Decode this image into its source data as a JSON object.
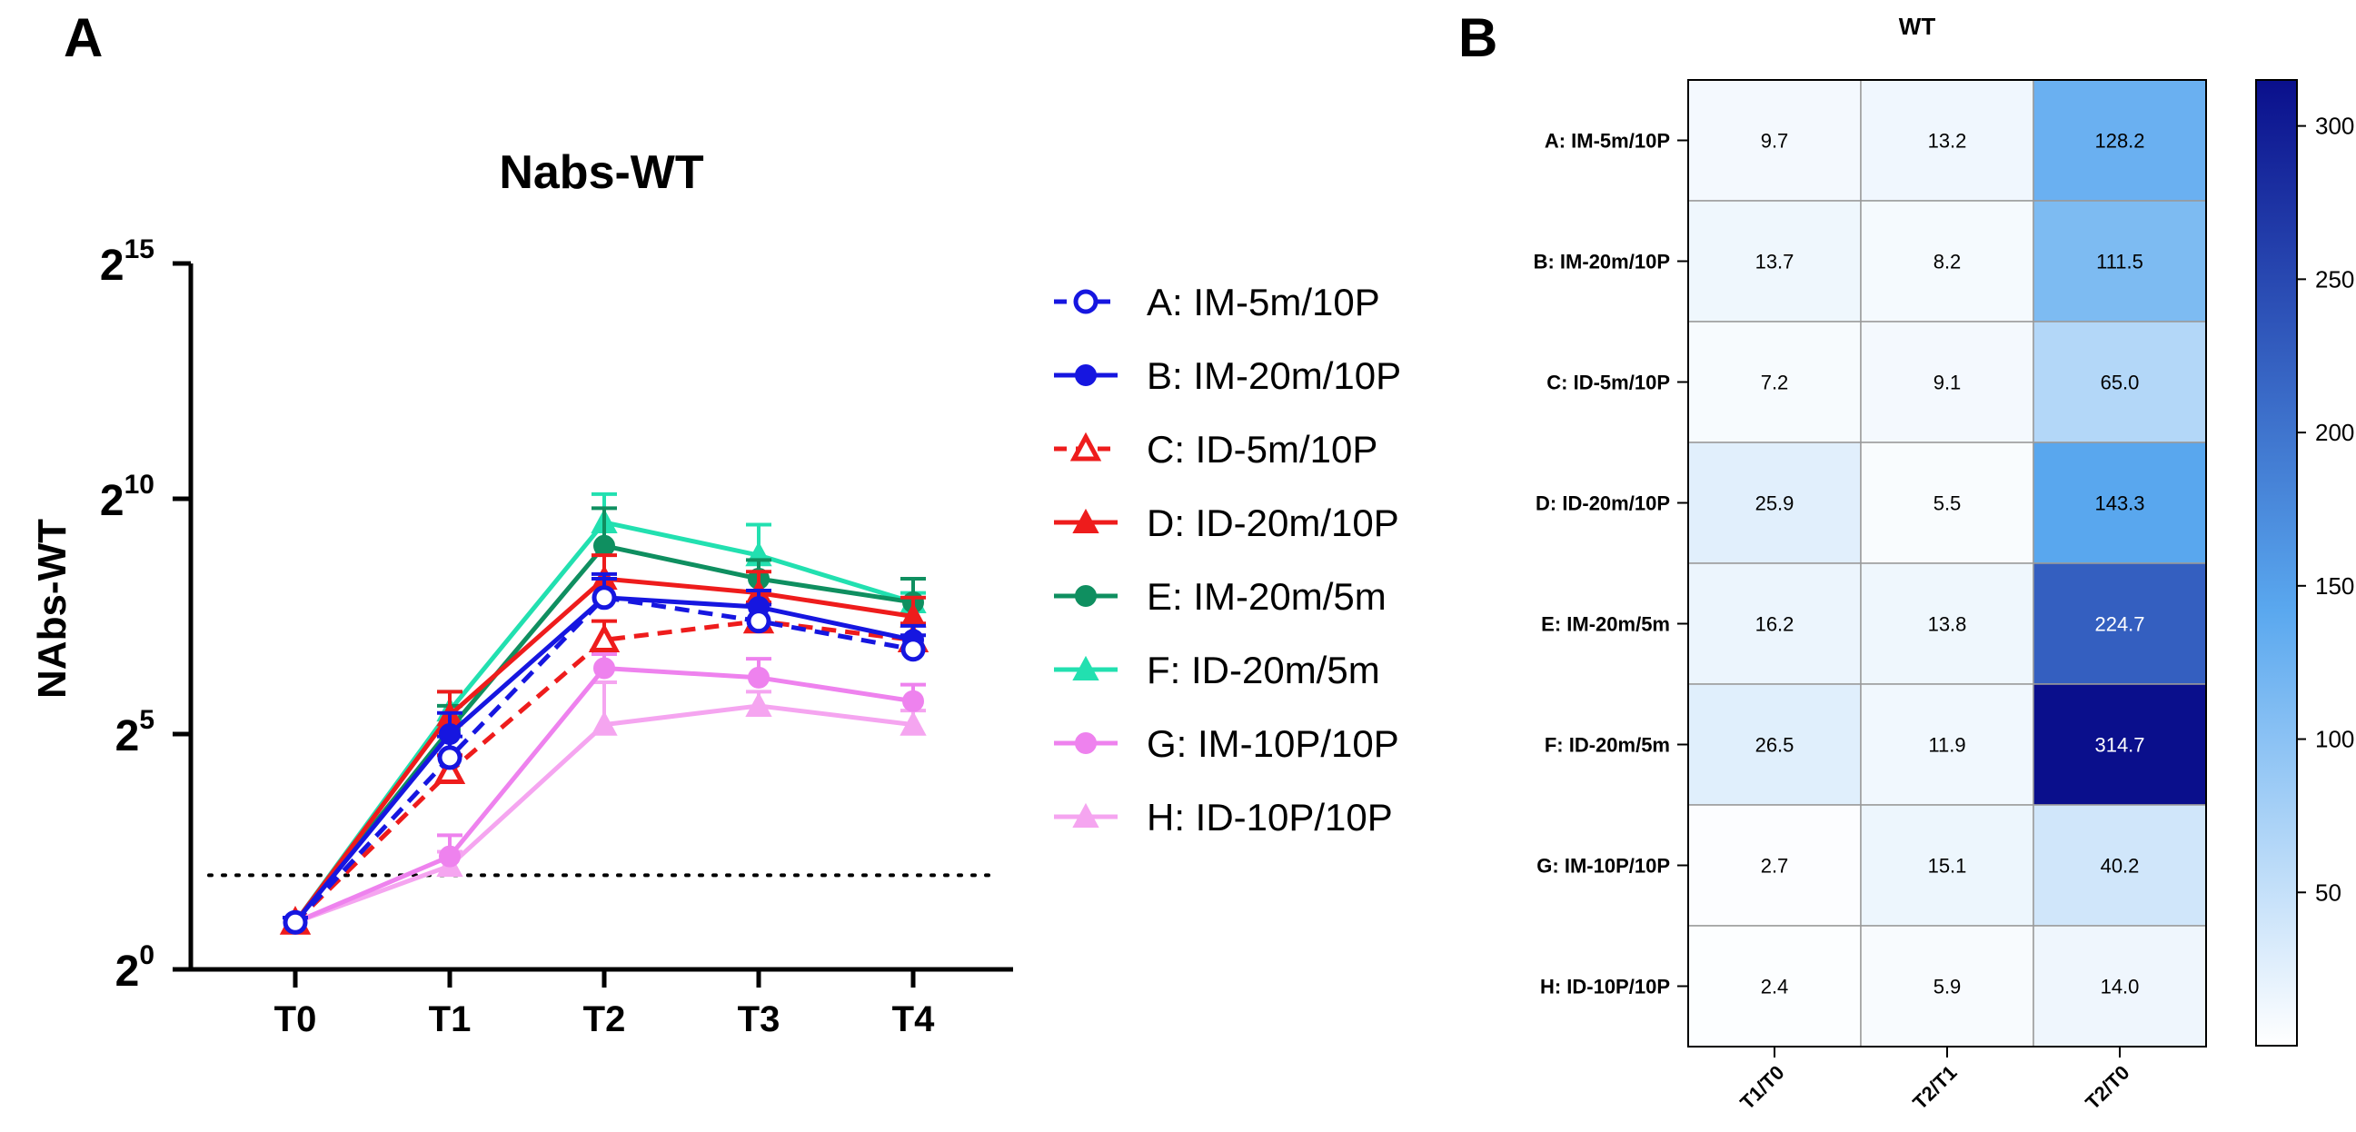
{
  "panels": {
    "a_label": "A",
    "b_label": "B"
  },
  "chart_data": [
    {
      "type": "line",
      "title": "Nabs-WT",
      "ylabel": "NAbs-WT",
      "xlabel": "",
      "categories": [
        "T0",
        "T1",
        "T2",
        "T3",
        "T4"
      ],
      "y_scale": "log2",
      "ylim_exp": [
        0,
        15
      ],
      "y_ticks": [
        {
          "base": "2",
          "exp": "0",
          "value": 0
        },
        {
          "base": "2",
          "exp": "5",
          "value": 5
        },
        {
          "base": "2",
          "exp": "10",
          "value": 10
        },
        {
          "base": "2",
          "exp": "15",
          "value": 15
        }
      ],
      "threshold_exp": 2.0,
      "series": [
        {
          "name": "A: IM-5m/10P",
          "color": "#1616e0",
          "dashed": true,
          "marker": "circle-open",
          "values_exp": [
            1.0,
            4.5,
            7.9,
            7.4,
            6.8
          ],
          "err_exp": [
            0.1,
            0.45,
            0.4,
            0.35,
            0.3
          ]
        },
        {
          "name": "B: IM-20m/10P",
          "color": "#1616e0",
          "dashed": false,
          "marker": "circle",
          "values_exp": [
            1.0,
            5.0,
            7.9,
            7.7,
            7.0
          ],
          "err_exp": [
            0.1,
            0.45,
            0.5,
            0.35,
            0.3
          ]
        },
        {
          "name": "C: ID-5m/10P",
          "color": "#ee1c1c",
          "dashed": true,
          "marker": "triangle-open",
          "values_exp": [
            1.0,
            4.2,
            7.0,
            7.4,
            7.0
          ],
          "err_exp": [
            0.1,
            0.35,
            0.4,
            0.4,
            0.35
          ]
        },
        {
          "name": "D: ID-20m/10P",
          "color": "#ee1c1c",
          "dashed": false,
          "marker": "triangle",
          "values_exp": [
            1.0,
            5.4,
            8.3,
            8.0,
            7.5
          ],
          "err_exp": [
            0.1,
            0.5,
            0.5,
            0.45,
            0.4
          ]
        },
        {
          "name": "E: IM-20m/5m",
          "color": "#0f8f60",
          "dashed": false,
          "marker": "circle",
          "values_exp": [
            1.0,
            5.1,
            9.0,
            8.3,
            7.8
          ],
          "err_exp": [
            0.1,
            0.5,
            0.8,
            0.4,
            0.5
          ]
        },
        {
          "name": "F: ID-20m/5m",
          "color": "#22e0b0",
          "dashed": false,
          "marker": "triangle",
          "values_exp": [
            1.0,
            5.5,
            9.5,
            8.8,
            7.8
          ],
          "err_exp": [
            0.1,
            0.4,
            0.6,
            0.65,
            0.2
          ]
        },
        {
          "name": "G: IM-10P/10P",
          "color": "#ee82ee",
          "dashed": false,
          "marker": "circle",
          "values_exp": [
            1.0,
            2.4,
            6.4,
            6.2,
            5.7
          ],
          "err_exp": [
            0.1,
            0.45,
            0.3,
            0.4,
            0.35
          ]
        },
        {
          "name": "H: ID-10P/10P",
          "color": "#f5a5f0",
          "dashed": false,
          "marker": "triangle",
          "values_exp": [
            1.0,
            2.2,
            5.2,
            5.6,
            5.2
          ],
          "err_exp": [
            0.1,
            0.3,
            0.9,
            0.3,
            0.3
          ]
        }
      ]
    },
    {
      "type": "heatmap",
      "title": "WT",
      "rows": [
        "A: IM-5m/10P",
        "B: IM-20m/10P",
        "C: ID-5m/10P",
        "D: ID-20m/10P",
        "E: IM-20m/5m",
        "F: ID-20m/5m",
        "G: IM-10P/10P",
        "H: ID-10P/10P"
      ],
      "columns": [
        "T1/T0",
        "T2/T1",
        "T2/T0"
      ],
      "values": [
        [
          9.7,
          13.2,
          128.2
        ],
        [
          13.7,
          8.2,
          111.5
        ],
        [
          7.2,
          9.1,
          65.0
        ],
        [
          25.9,
          5.5,
          143.3
        ],
        [
          16.2,
          13.8,
          224.7
        ],
        [
          26.5,
          11.9,
          314.7
        ],
        [
          2.7,
          15.1,
          40.2
        ],
        [
          2.4,
          5.9,
          14.0
        ]
      ],
      "labels": [
        [
          "9.7",
          "13.2",
          "128.2"
        ],
        [
          "13.7",
          "8.2",
          "111.5"
        ],
        [
          "7.2",
          "9.1",
          "65.0"
        ],
        [
          "25.9",
          "5.5",
          "143.3"
        ],
        [
          "16.2",
          "13.8",
          "224.7"
        ],
        [
          "26.5",
          "11.9",
          "314.7"
        ],
        [
          "2.7",
          "15.1",
          "40.2"
        ],
        [
          "2.4",
          "5.9",
          "14.0"
        ]
      ],
      "color_range": [
        0,
        315
      ],
      "color_low": "#ffffff",
      "color_mid": "#5aa8ef",
      "color_high": "#0a0f8c",
      "colorbar_ticks": [
        {
          "value": 50,
          "label": "50"
        },
        {
          "value": 100,
          "label": "100"
        },
        {
          "value": 150,
          "label": "150"
        },
        {
          "value": 200,
          "label": "200"
        },
        {
          "value": 250,
          "label": "250"
        },
        {
          "value": 300,
          "label": "300"
        }
      ]
    }
  ]
}
